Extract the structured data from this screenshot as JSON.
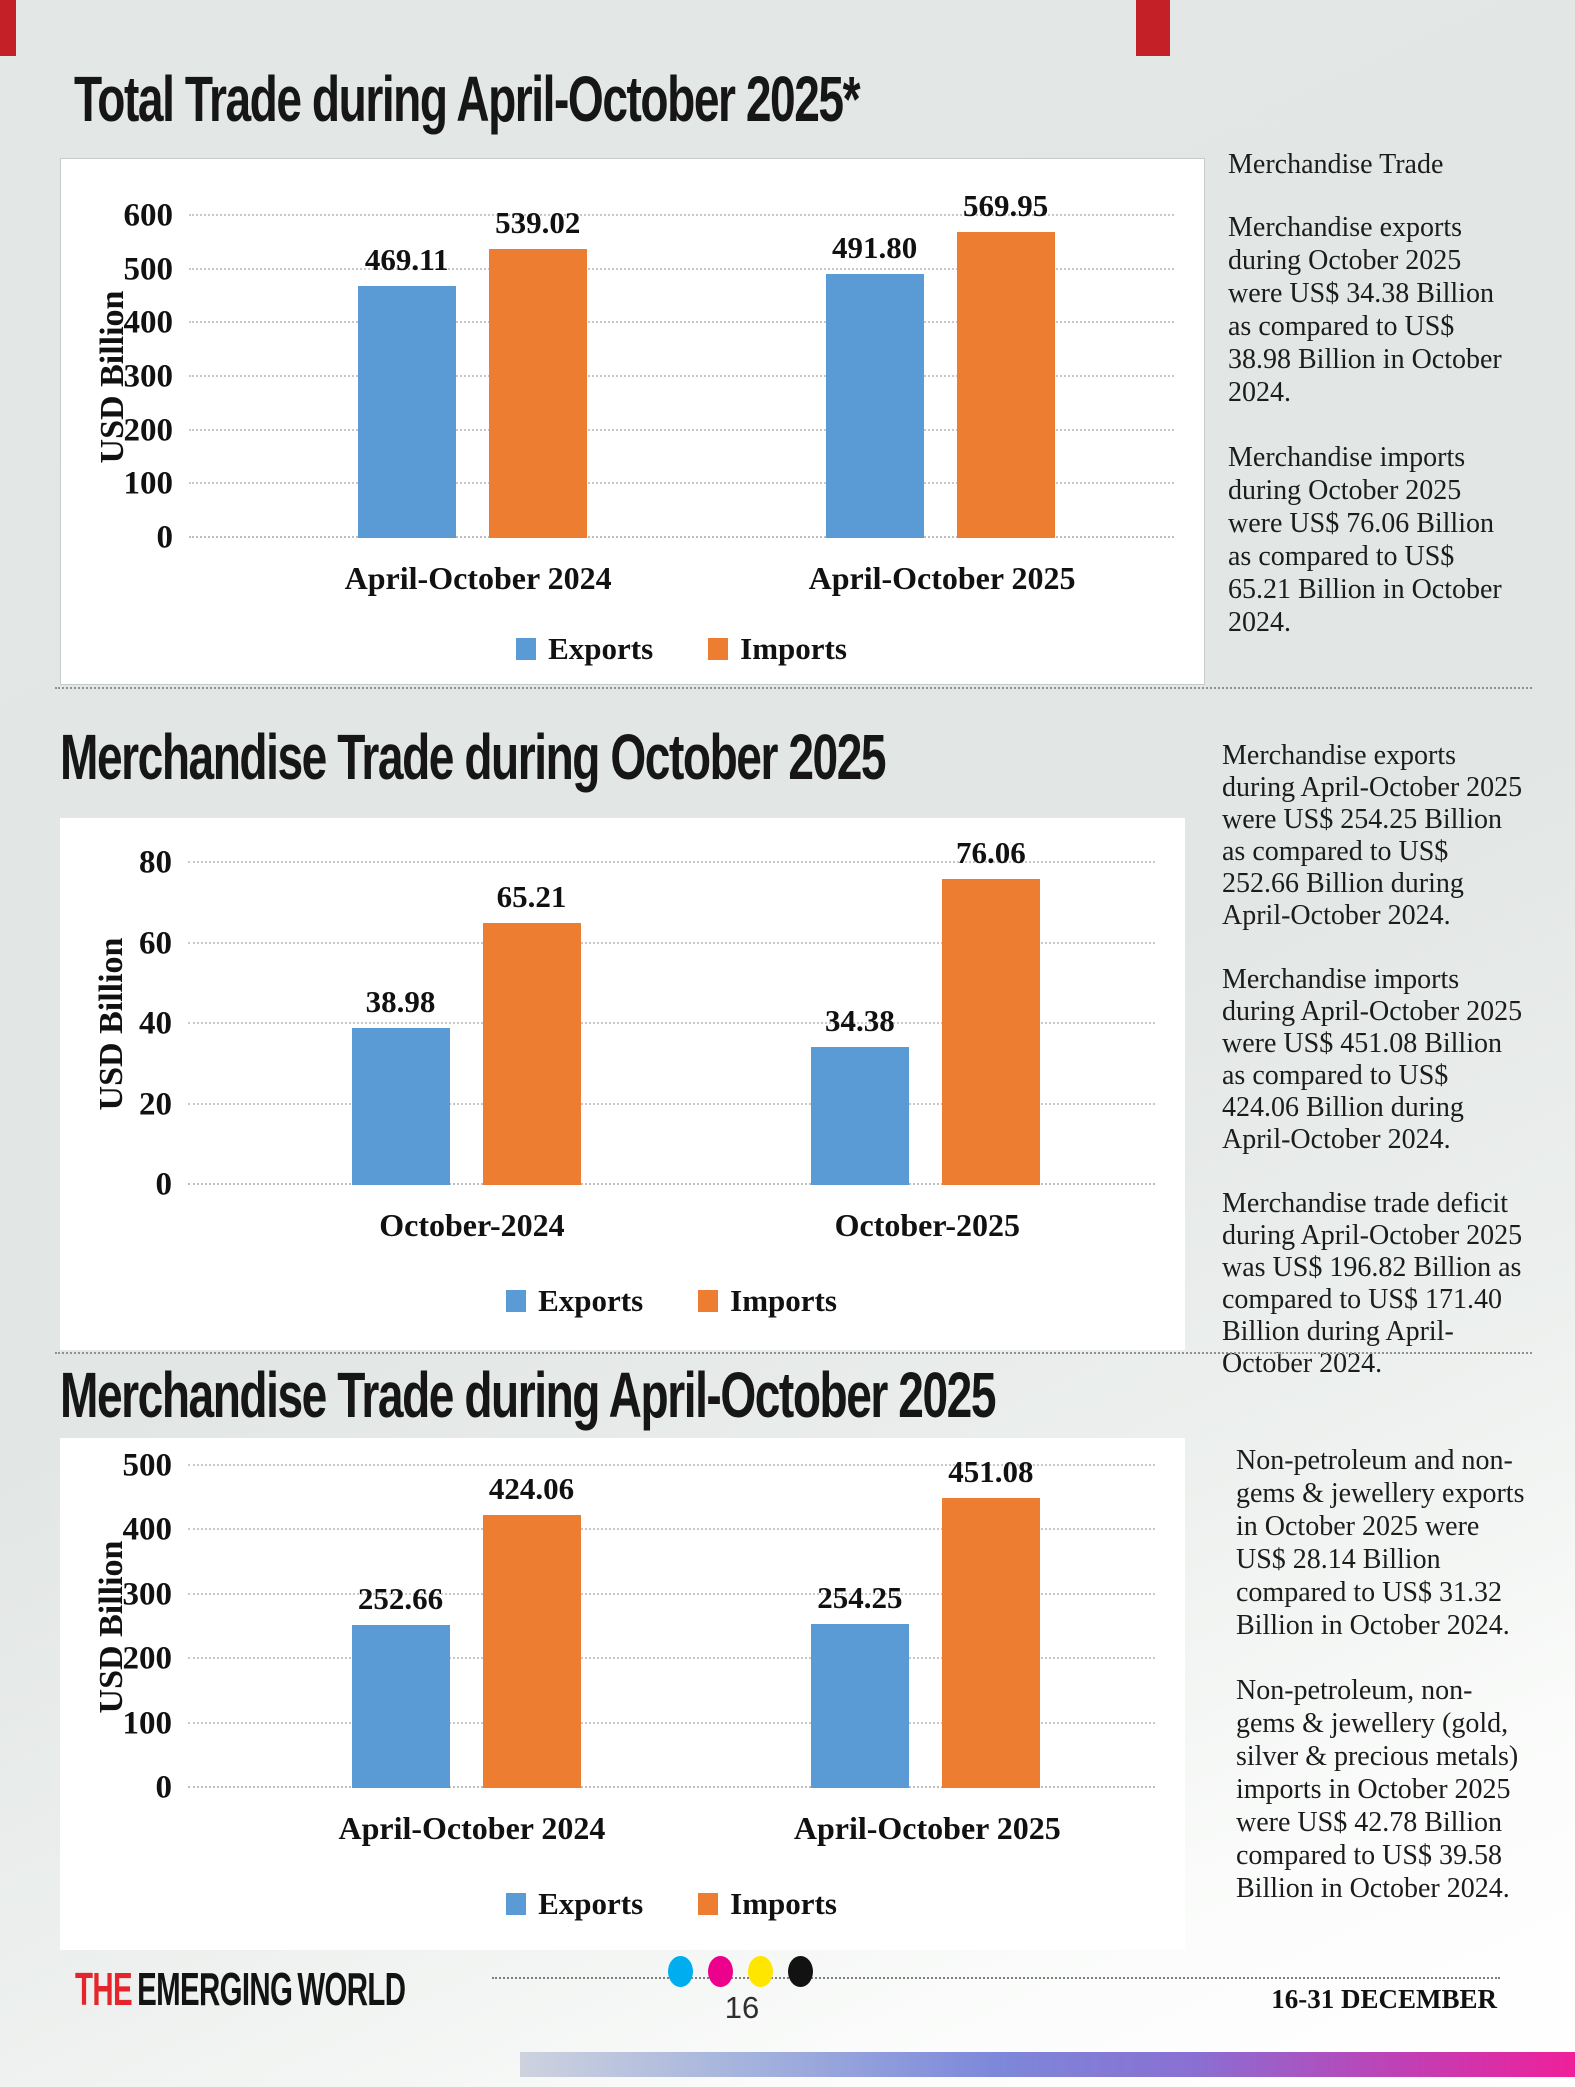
{
  "colors": {
    "exports": "#5B9BD5",
    "imports": "#ED7D31",
    "brand_red": "#E4262C",
    "crop_mark_red": "#C32127",
    "dot_cyan": "#00AEEF",
    "dot_magenta": "#EC008C",
    "dot_yellow": "#FFE600",
    "dot_black": "#121212"
  },
  "sections": [
    {
      "title": "Total Trade during April-October 2025*",
      "sidebar": {
        "heading": "Merchandise Trade",
        "paragraphs": [
          "Merchandise exports during October 2025 were US$ 34.38 Billion as compared to US$ 38.98 Billion in October 2024.",
          "Merchandise imports during October 2025 were US$ 76.06 Billion as compared to US$ 65.21 Billion in October 2024."
        ]
      }
    },
    {
      "title": "Merchandise Trade during October 2025",
      "sidebar": {
        "heading": "",
        "paragraphs": [
          "Merchandise exports during April-October 2025 were US$ 254.25 Billion as compared to US$ 252.66 Billion during April-October 2024.",
          "Merchandise imports during April-October 2025 were US$ 451.08 Billion as compared to US$ 424.06 Billion during April-October 2024.",
          "Merchandise trade deficit during April-October 2025 was US$ 196.82 Billion as compared to US$ 171.40 Billion during April-October 2024."
        ]
      }
    },
    {
      "title": "Merchandise Trade during April-October 2025",
      "sidebar": {
        "heading": "",
        "paragraphs": [
          "Non-petroleum and non-gems & jewellery exports in October 2025 were US$ 28.14 Billion compared to US$ 31.32 Billion in October 2024.",
          "Non-petroleum, non-gems & jewellery (gold, silver & precious metals) imports in October 2025 were US$ 42.78 Billion compared to US$ 39.58 Billion in October 2024."
        ]
      }
    }
  ],
  "chart_data": [
    {
      "type": "bar",
      "title": "Total Trade during April-October 2025*",
      "categories": [
        "April-October 2024",
        "April-October 2025"
      ],
      "series": [
        {
          "name": "Exports",
          "values": [
            469.11,
            491.8
          ],
          "labels": [
            "469.11",
            "491.80"
          ]
        },
        {
          "name": "Imports",
          "values": [
            539.02,
            569.95
          ],
          "labels": [
            "539.02",
            "569.95"
          ]
        }
      ],
      "xlabel": "",
      "ylabel": "USD Billion",
      "ylim": [
        0,
        600
      ],
      "yticks": [
        0,
        100,
        200,
        300,
        400,
        500,
        600
      ],
      "grid": true,
      "legend_position": "bottom"
    },
    {
      "type": "bar",
      "title": "Merchandise Trade during October 2025",
      "categories": [
        "October-2024",
        "October-2025"
      ],
      "series": [
        {
          "name": "Exports",
          "values": [
            38.98,
            34.38
          ],
          "labels": [
            "38.98",
            "34.38"
          ]
        },
        {
          "name": "Imports",
          "values": [
            65.21,
            76.06
          ],
          "labels": [
            "65.21",
            "76.06"
          ]
        }
      ],
      "xlabel": "",
      "ylabel": "USD Billion",
      "ylim": [
        0,
        80
      ],
      "yticks": [
        0,
        20,
        40,
        60,
        80
      ],
      "grid": true,
      "legend_position": "bottom"
    },
    {
      "type": "bar",
      "title": "Merchandise Trade during April-October 2025",
      "categories": [
        "April-October 2024",
        "April-October 2025"
      ],
      "series": [
        {
          "name": "Exports",
          "values": [
            252.66,
            254.25
          ],
          "labels": [
            "252.66",
            "254.25"
          ]
        },
        {
          "name": "Imports",
          "values": [
            424.06,
            451.08
          ],
          "labels": [
            "424.06",
            "451.08"
          ]
        }
      ],
      "xlabel": "",
      "ylabel": "USD Billion",
      "ylim": [
        0,
        500
      ],
      "yticks": [
        0,
        100,
        200,
        300,
        400,
        500
      ],
      "grid": true,
      "legend_position": "bottom"
    }
  ],
  "footer": {
    "brand_the": "THE",
    "brand_word1": "EMERGING",
    "brand_word2": "WORLD",
    "page_number": "16",
    "issue_date": "16-31 DECEMBER"
  }
}
